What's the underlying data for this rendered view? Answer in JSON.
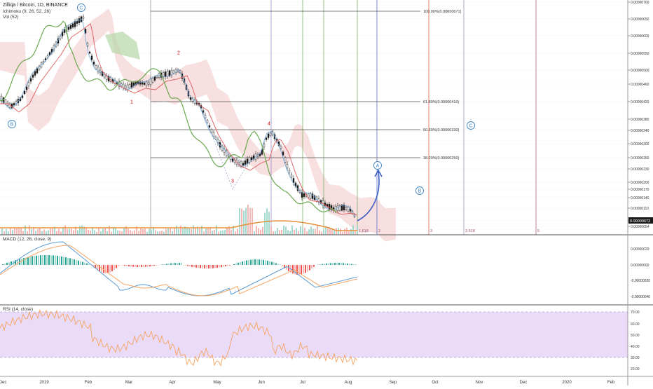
{
  "header": {
    "symbol": "Zilliqa / Bitcoin, 1D, BINANCE",
    "ichimoku": "Ichimoku (9, 26, 52, 26)",
    "vol": "Vol (52)",
    "macd": "MACD (12, 26, close, 9)",
    "rsi": "RSI (14, close)"
  },
  "colors": {
    "candle": "#1a1a1a",
    "tenkan": "#6fa8dc",
    "kijun": "#e06666",
    "chikou": "#6aa84f",
    "cloud_bull": "#b6d7a8",
    "cloud_bear": "#f4cccc",
    "macd_line": "#5b9bd5",
    "signal_line": "#f6a25e",
    "rsi": "#f6a25e",
    "rsi_band": "#eadcf8",
    "arrow": "#3c5fc4",
    "ma_volume": "#e69138",
    "price_badge": "#1a1a1a",
    "wave_circle": "#3d85c6"
  },
  "chart_data": [
    {
      "type": "candlestick",
      "title": "Zilliqa / Bitcoin, 1D, BINANCE",
      "x_ticks": [
        "Dec",
        "2019",
        "Feb",
        "Mar",
        "Apr",
        "May",
        "Jun",
        "Jul",
        "Aug",
        "Sep",
        "Oct",
        "Nov",
        "Dec",
        "2020",
        "Feb"
      ],
      "y_ticks": [
        "0.00000700",
        "0.00000650",
        "0.00000600",
        "0.00000550",
        "0.00000500",
        "0.00000460",
        "0.00000420",
        "0.00000380",
        "0.00000340",
        "0.00000300",
        "0.00000260",
        "0.00000230",
        "0.00000200",
        "0.00000170",
        "0.00000140",
        "0.00000110",
        "0.00000085",
        "0.00000054"
      ],
      "last_price": "0.00000073",
      "fib_levels": [
        {
          "label": "100.00%(0.00000671)"
        },
        {
          "label": "61.80%(0.00000410)"
        },
        {
          "label": "50.30%(0.00000330)"
        },
        {
          "label": "38.20%(0.00000250)"
        }
      ],
      "time_projections": [
        {
          "label": "1.618"
        },
        {
          "label": "2"
        },
        {
          "label": "3"
        },
        {
          "label": "3.618"
        },
        {
          "label": "5"
        }
      ],
      "wave_labels": [
        "C",
        "B",
        "2",
        "1",
        "3",
        "4",
        "A",
        "C",
        "B"
      ],
      "grid": true
    },
    {
      "type": "line",
      "title": "MACD (12, 26, close, 9)",
      "y_ticks": [
        "0.00000020",
        "0.00000000",
        "-0.00000020",
        "-0.00000040"
      ]
    },
    {
      "type": "line",
      "title": "RSI (14, close)",
      "y_ticks": [
        "70.00",
        "60.00",
        "50.00",
        "40.00",
        "30.00",
        "20.00"
      ],
      "band": [
        30,
        70
      ]
    }
  ]
}
